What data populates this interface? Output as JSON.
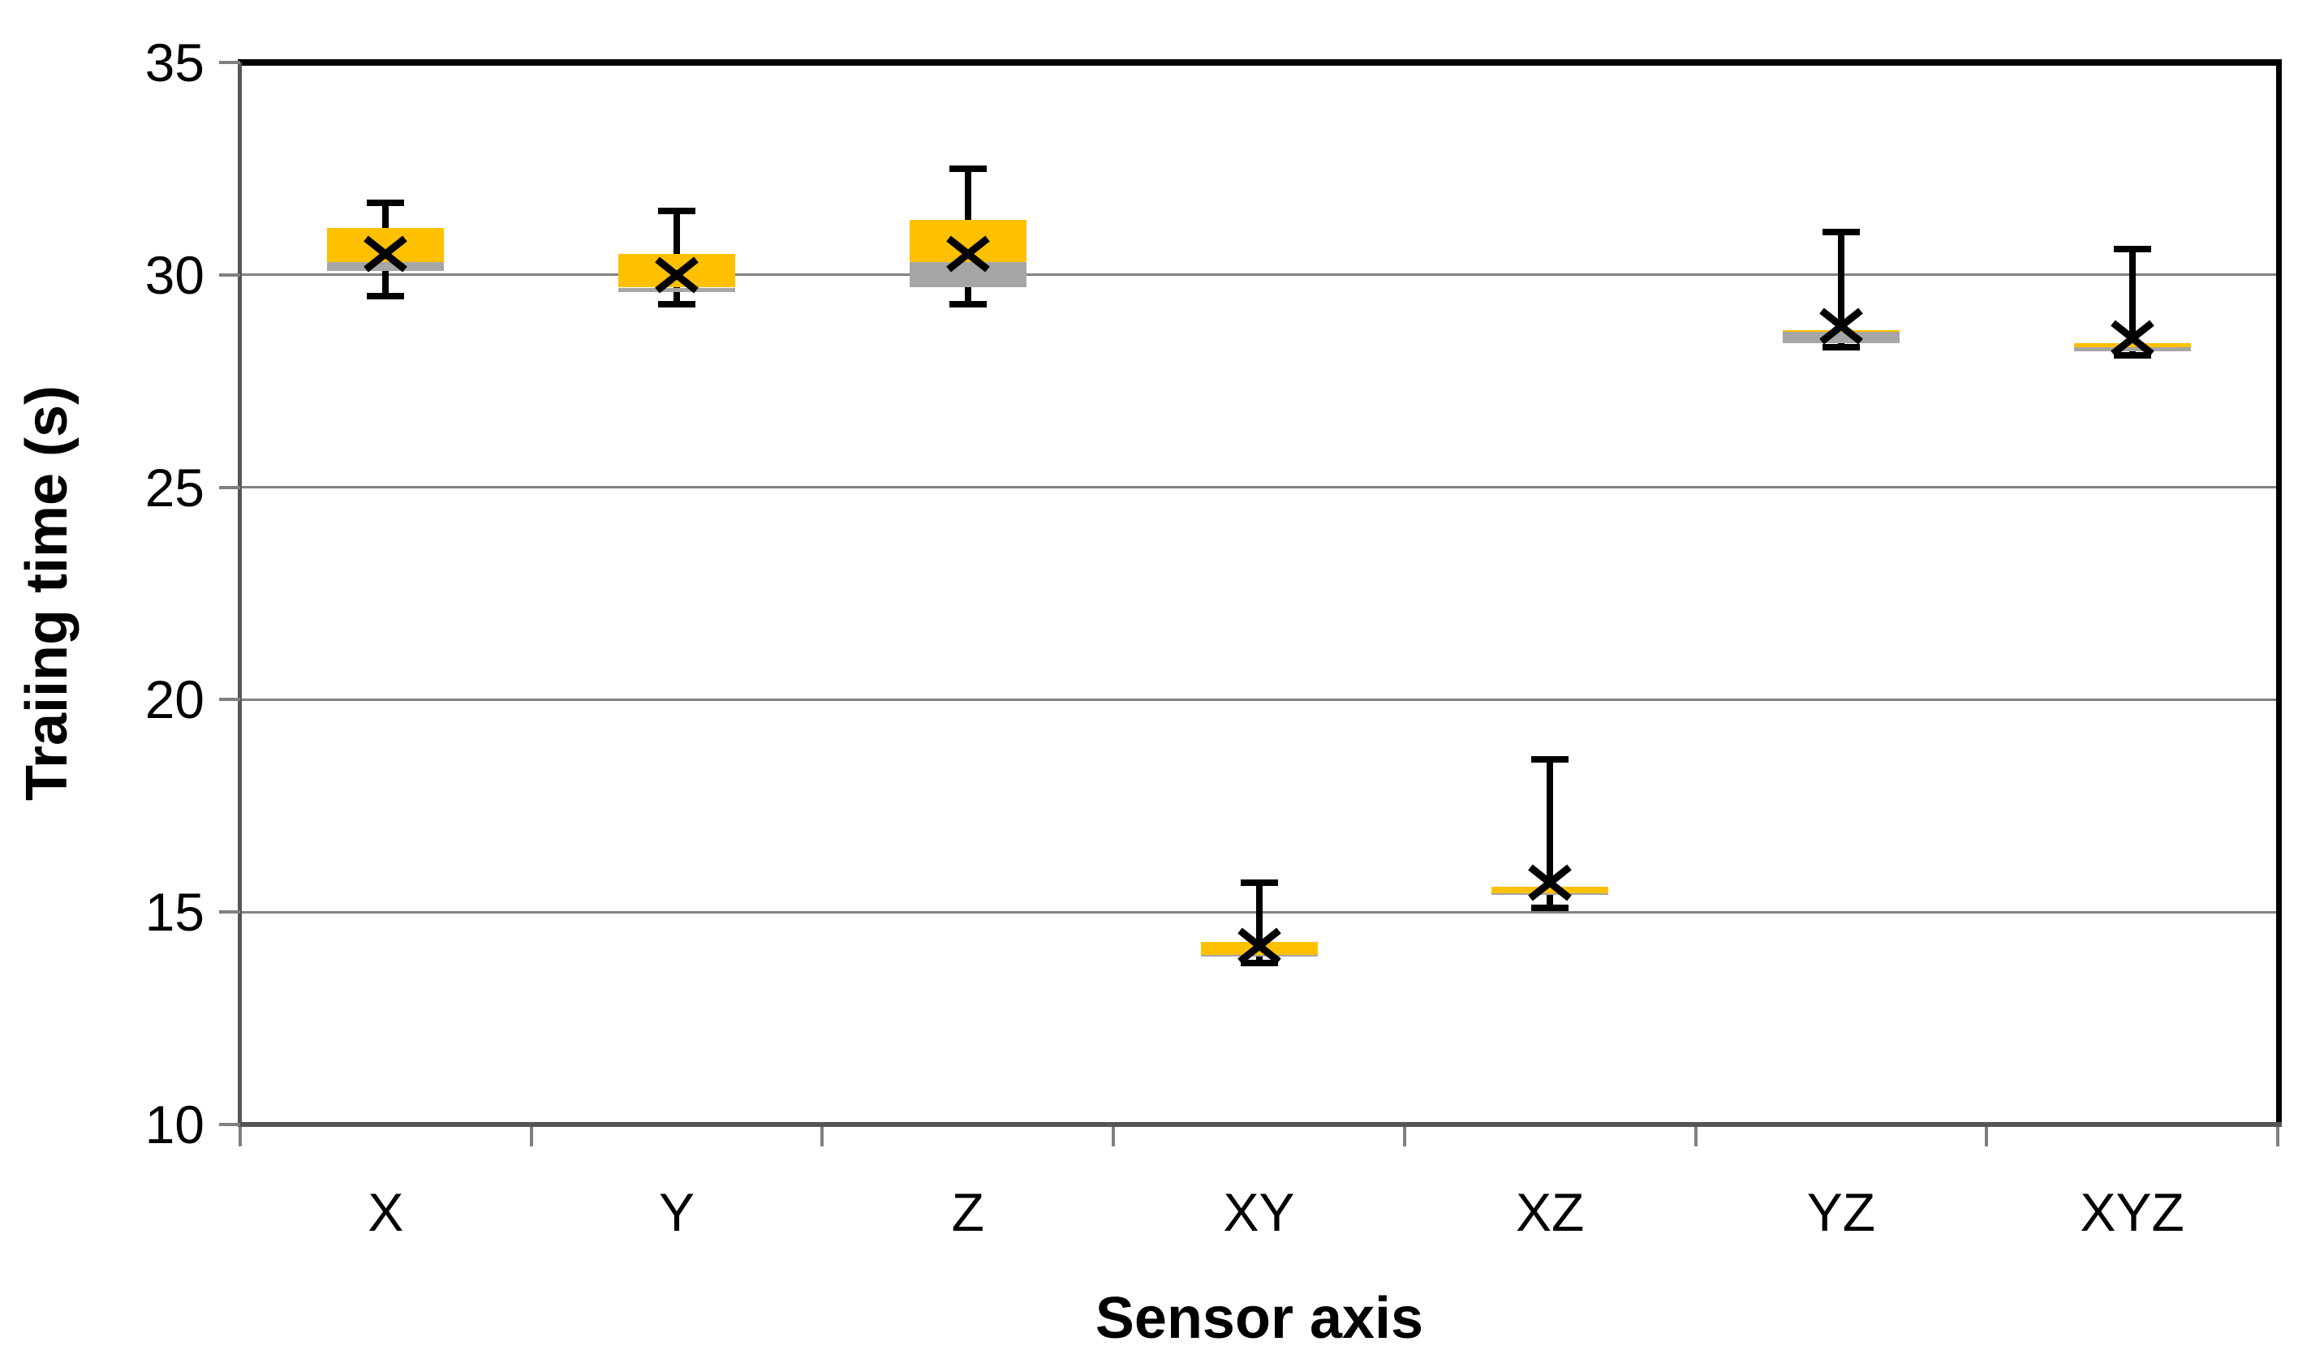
{
  "chart_data": {
    "type": "boxplot",
    "title": "",
    "xlabel": "Sensor axis",
    "ylabel": "Traiing time (s)",
    "ylim": [
      10,
      35
    ],
    "y_tick_labels": [
      "35",
      "30",
      "25",
      "20",
      "15",
      "10"
    ],
    "y_tick_values": [
      35,
      30,
      25,
      20,
      15,
      10
    ],
    "gridline_values": [
      30,
      25,
      20,
      15
    ],
    "grid": "horizontal",
    "legend": null,
    "categories": [
      "X",
      "Y",
      "Z",
      "XY",
      "XZ",
      "YZ",
      "XYZ"
    ],
    "series": [
      {
        "category": "X",
        "whisker_low": 29.5,
        "q1": 30.1,
        "median": 30.3,
        "q3": 31.1,
        "whisker_high": 31.7,
        "mean": 30.5
      },
      {
        "category": "Y",
        "whisker_low": 29.3,
        "q1": 29.6,
        "median": 29.7,
        "q3": 30.5,
        "whisker_high": 31.5,
        "mean": 30.0
      },
      {
        "category": "Z",
        "whisker_low": 29.3,
        "q1": 29.7,
        "median": 30.3,
        "q3": 31.3,
        "whisker_high": 32.5,
        "mean": 30.5
      },
      {
        "category": "XY",
        "whisker_low": 13.8,
        "q1": 13.97,
        "median": 14.0,
        "q3": 14.3,
        "whisker_high": 15.7,
        "mean": 14.2
      },
      {
        "category": "XZ",
        "whisker_low": 15.1,
        "q1": 15.4,
        "median": 15.45,
        "q3": 15.6,
        "whisker_high": 18.6,
        "mean": 15.7
      },
      {
        "category": "YZ",
        "whisker_low": 28.3,
        "q1": 28.4,
        "median": 28.65,
        "q3": 28.7,
        "whisker_high": 31.0,
        "mean": 28.8
      },
      {
        "category": "XYZ",
        "whisker_low": 28.1,
        "q1": 28.2,
        "median": 28.3,
        "q3": 28.4,
        "whisker_high": 30.6,
        "mean": 28.5
      }
    ],
    "colors": {
      "box_upper_fill": "#FFC000",
      "box_lower_fill": "#A6A6A6",
      "whisker": "#000000",
      "mean_marker": "#000000",
      "gridline": "#828282",
      "axis_line": "#555555",
      "tick": "#808080",
      "plot_border": "#000000",
      "text": "#000000"
    }
  }
}
